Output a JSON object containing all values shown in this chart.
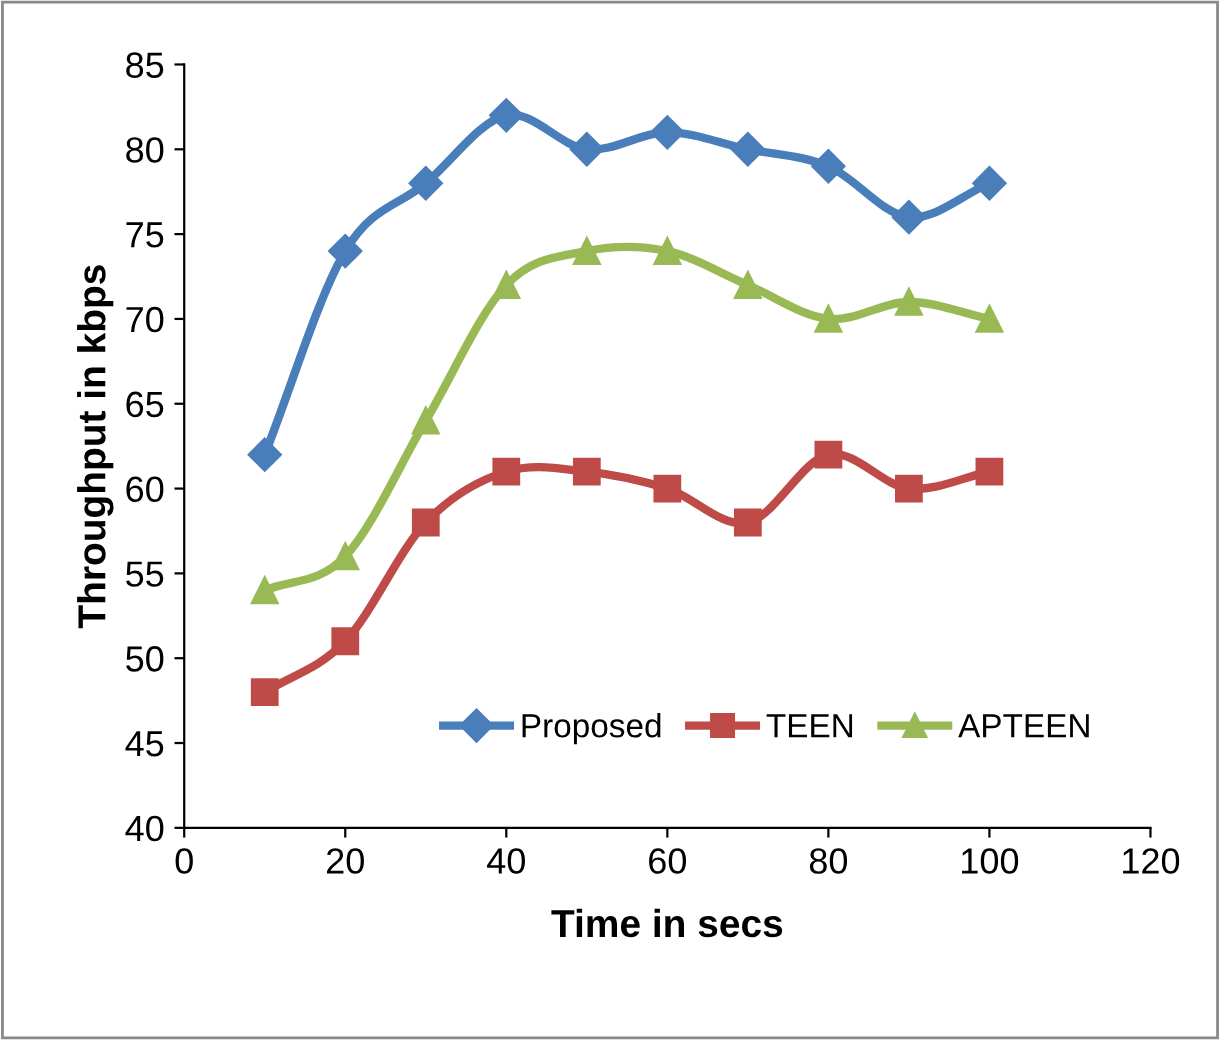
{
  "chart_data": {
    "type": "line",
    "xlabel": "Time in secs",
    "ylabel": "Throughput in kbps",
    "x": [
      10,
      20,
      30,
      40,
      50,
      60,
      70,
      80,
      90,
      100
    ],
    "series": [
      {
        "name": "Proposed",
        "color": "#4a7ebb",
        "marker": "diamond",
        "values": [
          62,
          74,
          78,
          82,
          80,
          81,
          80,
          79,
          76,
          78
        ]
      },
      {
        "name": "TEEN",
        "color": "#be4b48",
        "marker": "square",
        "values": [
          48,
          51,
          58,
          61,
          61,
          60,
          58,
          62,
          60,
          61
        ]
      },
      {
        "name": "APTEEN",
        "color": "#98b954",
        "marker": "triangle",
        "values": [
          54,
          56,
          64,
          72,
          74,
          74,
          72,
          70,
          71,
          70
        ]
      }
    ],
    "xlim": [
      0,
      120
    ],
    "xticks": [
      0,
      20,
      40,
      60,
      80,
      100,
      120
    ],
    "ylim": [
      40,
      85
    ],
    "yticks": [
      40,
      45,
      50,
      55,
      60,
      65,
      70,
      75,
      80,
      85
    ],
    "grid": false,
    "legend": "bottom right"
  }
}
